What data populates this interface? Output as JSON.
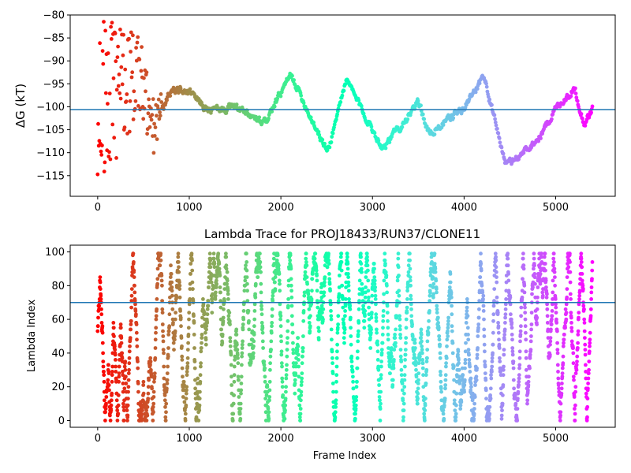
{
  "chart_data": [
    {
      "type": "scatter",
      "title": "",
      "xlabel": "",
      "ylabel": "ΔG (kT)",
      "xlim": [
        -300,
        5650
      ],
      "ylim": [
        -119.5,
        -80
      ],
      "xticks": [
        0,
        1000,
        2000,
        3000,
        4000,
        5000
      ],
      "yticks": [
        -115,
        -110,
        -105,
        -100,
        -95,
        -90,
        -85,
        -80
      ],
      "xtick_labels": [
        "0",
        "1000",
        "2000",
        "3000",
        "4000",
        "5000"
      ],
      "ytick_labels": [
        "−115",
        "−110",
        "−105",
        "−100",
        "−95",
        "−90",
        "−85",
        "−80"
      ],
      "hline": -100.6,
      "hline_color": "#1f77b4",
      "colormap": "rainbow (reversed: red at frame 0, violet at last frame)",
      "n_frames": 5400,
      "trace_summary": [
        {
          "x": 0,
          "y": -100
        },
        {
          "x": 250,
          "y": -96
        },
        {
          "x": 450,
          "y": -92
        },
        {
          "x": 600,
          "y": -105
        },
        {
          "x": 800,
          "y": -96
        },
        {
          "x": 1000,
          "y": -97
        },
        {
          "x": 1200,
          "y": -101
        },
        {
          "x": 1500,
          "y": -100
        },
        {
          "x": 1800,
          "y": -104
        },
        {
          "x": 2100,
          "y": -93
        },
        {
          "x": 2500,
          "y": -110
        },
        {
          "x": 2700,
          "y": -94
        },
        {
          "x": 3100,
          "y": -109
        },
        {
          "x": 3500,
          "y": -99
        },
        {
          "x": 3600,
          "y": -106
        },
        {
          "x": 4000,
          "y": -100
        },
        {
          "x": 4200,
          "y": -93
        },
        {
          "x": 4450,
          "y": -113
        },
        {
          "x": 4800,
          "y": -107
        },
        {
          "x": 5000,
          "y": -100
        },
        {
          "x": 5200,
          "y": -96
        },
        {
          "x": 5300,
          "y": -104
        },
        {
          "x": 5400,
          "y": -100
        }
      ]
    },
    {
      "type": "scatter",
      "title": "Lambda Trace for PROJ18433/RUN37/CLONE11",
      "xlabel": "Frame Index",
      "ylabel": "Lambda Index",
      "xlim": [
        -300,
        5650
      ],
      "ylim": [
        -4,
        104
      ],
      "xticks": [
        0,
        1000,
        2000,
        3000,
        4000,
        5000
      ],
      "yticks": [
        0,
        20,
        40,
        60,
        80,
        100
      ],
      "xtick_labels": [
        "0",
        "1000",
        "2000",
        "3000",
        "4000",
        "5000"
      ],
      "ytick_labels": [
        "0",
        "20",
        "40",
        "60",
        "80",
        "100"
      ],
      "hline": 70,
      "hline_color": "#1f77b4",
      "colormap": "rainbow (reversed: red at frame 0, violet at last frame)",
      "n_frames": 5400,
      "lambda_range": [
        0,
        99
      ]
    }
  ]
}
